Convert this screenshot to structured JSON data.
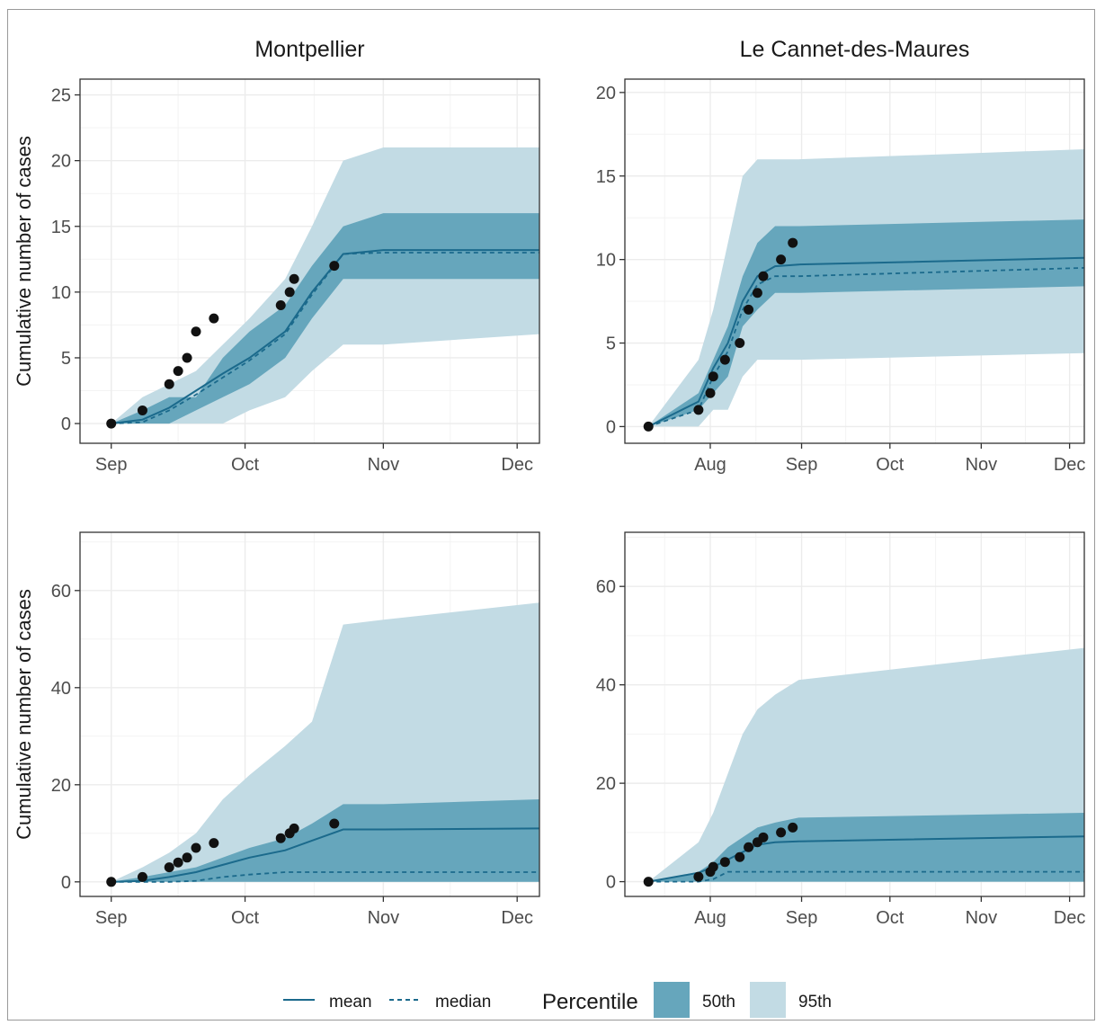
{
  "colors": {
    "band95": "#c2dbe4",
    "band50": "#66a6bc",
    "line": "#1b6a8c",
    "point": "#111111",
    "grid": "#ececec",
    "frame": "#333333",
    "text": "#1a1a1a",
    "tick_text": "#4d4d4d"
  },
  "legend": {
    "mean_label": "mean",
    "median_label": "median",
    "percentile_title": "Percentile",
    "p50_label": "50th",
    "p95_label": "95th"
  },
  "chart_data": [
    {
      "type": "line",
      "title": "Montpellier",
      "ylabel": "Cumulative number of cases",
      "ylim": [
        -1.5,
        26.2
      ],
      "yticks": [
        0,
        5,
        10,
        15,
        20,
        25
      ],
      "xlim": [
        "2020-08-25",
        "2020-12-06"
      ],
      "xticks": [
        {
          "date": "2020-09-01",
          "label": "Sep"
        },
        {
          "date": "2020-10-01",
          "label": "Oct"
        },
        {
          "date": "2020-11-01",
          "label": "Nov"
        },
        {
          "date": "2020-12-01",
          "label": "Dec"
        }
      ],
      "grid": true,
      "points": [
        [
          "2020-09-01",
          0
        ],
        [
          "2020-09-08",
          1
        ],
        [
          "2020-09-14",
          3
        ],
        [
          "2020-09-16",
          4
        ],
        [
          "2020-09-18",
          5
        ],
        [
          "2020-09-20",
          7
        ],
        [
          "2020-09-24",
          8
        ],
        [
          "2020-10-09",
          9
        ],
        [
          "2020-10-11",
          10
        ],
        [
          "2020-10-12",
          11
        ],
        [
          "2020-10-21",
          12
        ]
      ],
      "x": [
        "2020-09-01",
        "2020-09-08",
        "2020-09-14",
        "2020-09-20",
        "2020-09-26",
        "2020-10-02",
        "2020-10-10",
        "2020-10-16",
        "2020-10-23",
        "2020-11-01",
        "2020-12-06"
      ],
      "mean": [
        0,
        0.3,
        1.2,
        2.5,
        3.8,
        5.0,
        7.0,
        10.0,
        12.9,
        13.2,
        13.2
      ],
      "median": [
        0,
        0.1,
        1.0,
        2.2,
        3.5,
        4.8,
        6.8,
        9.8,
        12.9,
        13.0,
        13.0
      ],
      "p50_low": [
        0,
        0,
        0,
        1,
        2,
        3,
        5,
        8,
        11,
        11,
        11
      ],
      "p50_high": [
        0,
        1,
        2,
        2,
        5,
        7,
        9,
        12,
        15,
        16,
        16
      ],
      "p95_low": [
        0,
        0,
        0,
        0,
        0,
        1,
        2,
        4,
        6,
        6,
        6.8
      ],
      "p95_high": [
        0,
        2,
        3,
        4,
        6,
        8,
        11,
        15,
        20,
        21,
        21
      ]
    },
    {
      "type": "line",
      "title": "Le Cannet-des-Maures",
      "ylabel": "",
      "ylim": [
        -1,
        20.8
      ],
      "yticks": [
        0,
        5,
        10,
        15,
        20
      ],
      "xlim": [
        "2020-07-03",
        "2020-12-06"
      ],
      "xticks": [
        {
          "date": "2020-08-01",
          "label": "Aug"
        },
        {
          "date": "2020-09-01",
          "label": "Sep"
        },
        {
          "date": "2020-10-01",
          "label": "Oct"
        },
        {
          "date": "2020-11-01",
          "label": "Nov"
        },
        {
          "date": "2020-12-01",
          "label": "Dec"
        }
      ],
      "grid": true,
      "points": [
        [
          "2020-07-11",
          0
        ],
        [
          "2020-07-28",
          1
        ],
        [
          "2020-08-01",
          2
        ],
        [
          "2020-08-02",
          3
        ],
        [
          "2020-08-06",
          4
        ],
        [
          "2020-08-11",
          5
        ],
        [
          "2020-08-14",
          7
        ],
        [
          "2020-08-17",
          8
        ],
        [
          "2020-08-19",
          9
        ],
        [
          "2020-08-25",
          10
        ],
        [
          "2020-08-29",
          11
        ]
      ],
      "x": [
        "2020-07-11",
        "2020-07-28",
        "2020-08-02",
        "2020-08-07",
        "2020-08-12",
        "2020-08-17",
        "2020-08-23",
        "2020-08-31",
        "2020-12-06"
      ],
      "mean": [
        0,
        1.5,
        3.5,
        5.0,
        7.5,
        9.0,
        9.6,
        9.7,
        10.1
      ],
      "median": [
        0,
        1.0,
        3.0,
        4.5,
        7.0,
        8.5,
        9.0,
        9.0,
        9.5
      ],
      "p50_low": [
        0,
        1,
        2,
        3,
        6,
        7,
        8,
        8,
        8.4
      ],
      "p50_high": [
        0,
        2,
        4,
        6,
        9,
        11,
        12,
        12,
        12.4
      ],
      "p95_low": [
        0,
        0,
        1,
        1,
        3,
        4,
        4,
        4,
        4.4
      ],
      "p95_high": [
        0,
        4,
        7,
        11,
        15,
        16,
        16,
        16,
        16.6
      ]
    },
    {
      "type": "line",
      "title": "",
      "ylabel": "Cumulative number of cases",
      "ylim": [
        -3,
        72
      ],
      "yticks": [
        0,
        20,
        40,
        60
      ],
      "xlim": [
        "2020-08-25",
        "2020-12-06"
      ],
      "xticks": [
        {
          "date": "2020-09-01",
          "label": "Sep"
        },
        {
          "date": "2020-10-01",
          "label": "Oct"
        },
        {
          "date": "2020-11-01",
          "label": "Nov"
        },
        {
          "date": "2020-12-01",
          "label": "Dec"
        }
      ],
      "grid": true,
      "points": [
        [
          "2020-09-01",
          0
        ],
        [
          "2020-09-08",
          1
        ],
        [
          "2020-09-14",
          3
        ],
        [
          "2020-09-16",
          4
        ],
        [
          "2020-09-18",
          5
        ],
        [
          "2020-09-20",
          7
        ],
        [
          "2020-09-24",
          8
        ],
        [
          "2020-10-09",
          9
        ],
        [
          "2020-10-11",
          10
        ],
        [
          "2020-10-12",
          11
        ],
        [
          "2020-10-21",
          12
        ]
      ],
      "x": [
        "2020-09-01",
        "2020-09-08",
        "2020-09-14",
        "2020-09-20",
        "2020-09-26",
        "2020-10-02",
        "2020-10-10",
        "2020-10-16",
        "2020-10-23",
        "2020-11-01",
        "2020-12-06"
      ],
      "mean": [
        0,
        0.2,
        1.0,
        2.0,
        3.5,
        5.0,
        6.5,
        8.5,
        10.8,
        10.8,
        11.0
      ],
      "median": [
        0,
        0,
        0,
        0.2,
        1.0,
        1.5,
        2.0,
        2.0,
        2.0,
        2.0,
        2.0
      ],
      "p50_low": [
        0,
        0,
        0,
        0,
        0,
        0,
        0,
        0,
        0,
        0,
        0
      ],
      "p50_high": [
        0,
        1,
        2,
        3,
        5,
        7,
        9,
        12,
        16,
        16,
        17
      ],
      "p95_low": [
        0,
        0,
        0,
        0,
        0,
        0,
        0,
        0,
        0,
        0,
        0
      ],
      "p95_high": [
        0,
        3,
        6,
        10,
        17,
        22,
        28,
        33,
        53,
        54,
        57.5
      ]
    },
    {
      "type": "line",
      "title": "",
      "ylabel": "",
      "ylim": [
        -3,
        71
      ],
      "yticks": [
        0,
        20,
        40,
        60
      ],
      "xlim": [
        "2020-07-03",
        "2020-12-06"
      ],
      "xticks": [
        {
          "date": "2020-08-01",
          "label": "Aug"
        },
        {
          "date": "2020-09-01",
          "label": "Sep"
        },
        {
          "date": "2020-10-01",
          "label": "Oct"
        },
        {
          "date": "2020-11-01",
          "label": "Nov"
        },
        {
          "date": "2020-12-01",
          "label": "Dec"
        }
      ],
      "grid": true,
      "points": [
        [
          "2020-07-11",
          0
        ],
        [
          "2020-07-28",
          1
        ],
        [
          "2020-08-01",
          2
        ],
        [
          "2020-08-02",
          3
        ],
        [
          "2020-08-06",
          4
        ],
        [
          "2020-08-11",
          5
        ],
        [
          "2020-08-14",
          7
        ],
        [
          "2020-08-17",
          8
        ],
        [
          "2020-08-19",
          9
        ],
        [
          "2020-08-25",
          10
        ],
        [
          "2020-08-29",
          11
        ]
      ],
      "x": [
        "2020-07-11",
        "2020-07-28",
        "2020-08-02",
        "2020-08-07",
        "2020-08-12",
        "2020-08-17",
        "2020-08-23",
        "2020-08-31",
        "2020-12-06"
      ],
      "mean": [
        0,
        1.8,
        3.0,
        4.5,
        6.0,
        7.5,
        8.0,
        8.2,
        9.2
      ],
      "median": [
        0,
        0,
        0.5,
        2.0,
        2.0,
        2.0,
        2.0,
        2.0,
        2.0
      ],
      "p50_low": [
        0,
        0,
        0,
        0,
        0,
        0,
        0,
        0,
        0
      ],
      "p50_high": [
        0,
        2,
        4,
        7,
        9,
        11,
        12,
        13,
        14
      ],
      "p95_low": [
        0,
        0,
        0,
        0,
        0,
        0,
        0,
        0,
        0
      ],
      "p95_high": [
        0,
        8,
        14,
        22,
        30,
        35,
        38,
        41,
        47.5
      ]
    }
  ]
}
